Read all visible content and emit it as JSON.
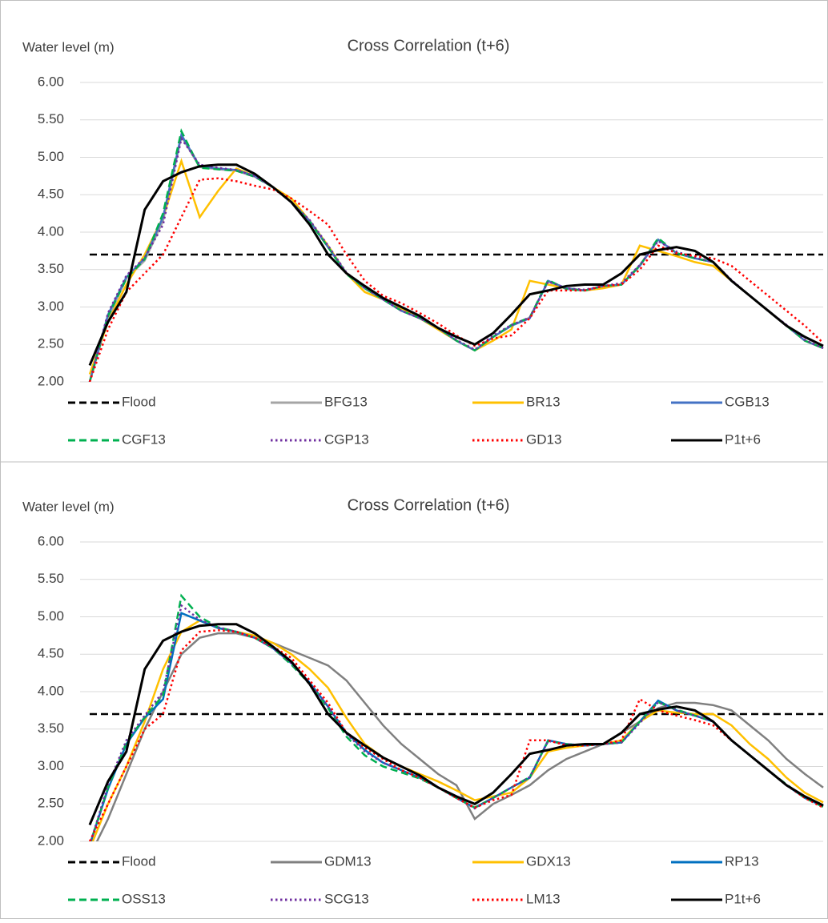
{
  "chart_data": [
    {
      "type": "line",
      "title": "Cross Correlation (t+6)",
      "y_label": "Water level (m)",
      "ylim": [
        2,
        6
      ],
      "grid": true,
      "legend": "bottom",
      "yticks": [
        {
          "value": 2,
          "label": "2.00"
        },
        {
          "value": 2.5,
          "label": "2.50"
        },
        {
          "value": 3,
          "label": "3.00"
        },
        {
          "value": 3.5,
          "label": "3.50"
        },
        {
          "value": 4,
          "label": "4.00"
        },
        {
          "value": 4.5,
          "label": "4.50"
        },
        {
          "value": 5,
          "label": "5.00"
        },
        {
          "value": 5.5,
          "label": "5.50"
        },
        {
          "value": 6,
          "label": "6.00"
        }
      ],
      "series": [
        {
          "name": "Flood",
          "color": "#000000",
          "dash": "dashed",
          "values": [
            3.7,
            3.7,
            3.7,
            3.7,
            3.7,
            3.7,
            3.7,
            3.7,
            3.7,
            3.7,
            3.7,
            3.7,
            3.7,
            3.7,
            3.7,
            3.7,
            3.7,
            3.7,
            3.7,
            3.7,
            3.7,
            3.7,
            3.7,
            3.7,
            3.7,
            3.7,
            3.7,
            3.7,
            3.7,
            3.7,
            3.7,
            3.7,
            3.7,
            3.7,
            3.7,
            3.7,
            3.7,
            3.7,
            3.7,
            3.7,
            3.7
          ]
        },
        {
          "name": "BFG13",
          "color": "#a5a5a5",
          "dash": "solid",
          "values": [
            2.0,
            2.85,
            3.38,
            3.62,
            4.15,
            5.28,
            4.87,
            4.84,
            4.82,
            4.74,
            4.6,
            4.4,
            4.15,
            3.8,
            3.45,
            3.25,
            3.1,
            2.95,
            2.85,
            2.72,
            2.55,
            2.42,
            2.6,
            2.75,
            2.86,
            3.34,
            3.24,
            3.22,
            3.28,
            3.3,
            3.56,
            3.9,
            3.72,
            3.65,
            3.6,
            3.35,
            3.15,
            2.95,
            2.75,
            2.55,
            2.45
          ]
        },
        {
          "name": "BR13",
          "color": "#ffc000",
          "dash": "solid",
          "values": [
            2.1,
            2.8,
            3.3,
            3.7,
            4.2,
            4.95,
            4.2,
            4.55,
            4.85,
            4.75,
            4.6,
            4.45,
            4.15,
            3.82,
            3.45,
            3.2,
            3.1,
            2.98,
            2.85,
            2.7,
            2.55,
            2.42,
            2.55,
            2.7,
            3.35,
            3.3,
            3.25,
            3.22,
            3.25,
            3.3,
            3.82,
            3.75,
            3.68,
            3.6,
            3.55,
            3.35,
            3.15,
            2.95,
            2.75,
            2.55,
            2.45
          ]
        },
        {
          "name": "CGB13",
          "color": "#4472c4",
          "dash": "solid",
          "values": [
            2.0,
            2.9,
            3.4,
            3.65,
            4.2,
            5.3,
            4.88,
            4.85,
            4.83,
            4.75,
            4.6,
            4.4,
            4.15,
            3.8,
            3.45,
            3.25,
            3.1,
            2.95,
            2.85,
            2.72,
            2.55,
            2.42,
            2.6,
            2.75,
            2.85,
            3.35,
            3.25,
            3.22,
            3.28,
            3.3,
            3.55,
            3.9,
            3.72,
            3.65,
            3.6,
            3.35,
            3.15,
            2.95,
            2.75,
            2.55,
            2.45
          ]
        },
        {
          "name": "CGF13",
          "color": "#00b050",
          "dash": "dashed",
          "values": [
            2.0,
            2.88,
            3.38,
            3.64,
            4.25,
            5.35,
            4.86,
            4.84,
            4.82,
            4.74,
            4.6,
            4.4,
            4.14,
            3.8,
            3.44,
            3.25,
            3.1,
            2.95,
            2.85,
            2.72,
            2.55,
            2.42,
            2.6,
            2.76,
            2.86,
            3.36,
            3.24,
            3.22,
            3.28,
            3.3,
            3.55,
            3.92,
            3.72,
            3.65,
            3.6,
            3.35,
            3.15,
            2.95,
            2.75,
            2.55,
            2.45
          ]
        },
        {
          "name": "CGP13",
          "color": "#7030a0",
          "dash": "dotted",
          "values": [
            2.0,
            2.92,
            3.42,
            3.66,
            4.1,
            5.25,
            4.9,
            4.86,
            4.83,
            4.75,
            4.6,
            4.4,
            4.16,
            3.82,
            3.46,
            3.26,
            3.1,
            2.95,
            2.85,
            2.72,
            2.56,
            2.43,
            2.62,
            2.76,
            2.86,
            3.34,
            3.25,
            3.23,
            3.28,
            3.32,
            3.56,
            3.88,
            3.74,
            3.66,
            3.6,
            3.36,
            3.15,
            2.95,
            2.76,
            2.56,
            2.45
          ]
        },
        {
          "name": "GD13",
          "color": "#ff0000",
          "dash": "dotted",
          "values": [
            2.0,
            2.7,
            3.2,
            3.45,
            3.7,
            4.2,
            4.7,
            4.72,
            4.68,
            4.62,
            4.57,
            4.45,
            4.28,
            4.1,
            3.7,
            3.35,
            3.15,
            3.05,
            2.92,
            2.78,
            2.62,
            2.48,
            2.58,
            2.62,
            2.85,
            3.22,
            3.22,
            3.22,
            3.28,
            3.3,
            3.5,
            3.82,
            3.72,
            3.68,
            3.65,
            3.55,
            3.35,
            3.15,
            2.95,
            2.75,
            2.52
          ]
        },
        {
          "name": "P1t+6",
          "color": "#000000",
          "dash": "solid",
          "values": [
            2.22,
            2.8,
            3.2,
            4.3,
            4.68,
            4.8,
            4.88,
            4.9,
            4.9,
            4.78,
            4.6,
            4.4,
            4.1,
            3.7,
            3.45,
            3.28,
            3.12,
            3.0,
            2.88,
            2.72,
            2.6,
            2.5,
            2.65,
            2.9,
            3.17,
            3.22,
            3.28,
            3.3,
            3.3,
            3.45,
            3.7,
            3.76,
            3.8,
            3.75,
            3.6,
            3.35,
            3.15,
            2.95,
            2.75,
            2.6,
            2.48
          ]
        }
      ]
    },
    {
      "type": "line",
      "title": "Cross Correlation (t+6)",
      "y_label": "Water level (m)",
      "ylim": [
        2,
        6
      ],
      "grid": true,
      "legend": "bottom",
      "yticks": [
        {
          "value": 2,
          "label": "2.00"
        },
        {
          "value": 2.5,
          "label": "2.50"
        },
        {
          "value": 3,
          "label": "3.00"
        },
        {
          "value": 3.5,
          "label": "3.50"
        },
        {
          "value": 4,
          "label": "4.00"
        },
        {
          "value": 4.5,
          "label": "4.50"
        },
        {
          "value": 5,
          "label": "5.00"
        },
        {
          "value": 5.5,
          "label": "5.50"
        },
        {
          "value": 6,
          "label": "6.00"
        }
      ],
      "series": [
        {
          "name": "Flood",
          "color": "#000000",
          "dash": "dashed",
          "values": [
            3.7,
            3.7,
            3.7,
            3.7,
            3.7,
            3.7,
            3.7,
            3.7,
            3.7,
            3.7,
            3.7,
            3.7,
            3.7,
            3.7,
            3.7,
            3.7,
            3.7,
            3.7,
            3.7,
            3.7,
            3.7,
            3.7,
            3.7,
            3.7,
            3.7,
            3.7,
            3.7,
            3.7,
            3.7,
            3.7,
            3.7,
            3.7,
            3.7,
            3.7,
            3.7,
            3.7,
            3.7,
            3.7,
            3.7,
            3.7,
            3.7
          ]
        },
        {
          "name": "GDM13",
          "color": "#808080",
          "dash": "solid",
          "values": [
            1.8,
            2.3,
            2.9,
            3.5,
            4.0,
            4.5,
            4.72,
            4.78,
            4.78,
            4.72,
            4.65,
            4.55,
            4.45,
            4.35,
            4.15,
            3.85,
            3.55,
            3.3,
            3.1,
            2.9,
            2.75,
            2.3,
            2.5,
            2.62,
            2.75,
            2.95,
            3.1,
            3.2,
            3.3,
            3.45,
            3.6,
            3.78,
            3.85,
            3.85,
            3.82,
            3.75,
            3.55,
            3.35,
            3.1,
            2.9,
            2.72
          ]
        },
        {
          "name": "GDX13",
          "color": "#ffc000",
          "dash": "solid",
          "values": [
            1.9,
            2.5,
            3.0,
            3.6,
            4.3,
            4.8,
            4.95,
            4.85,
            4.8,
            4.75,
            4.65,
            4.5,
            4.3,
            4.05,
            3.65,
            3.3,
            3.12,
            3.0,
            2.9,
            2.8,
            2.68,
            2.55,
            2.6,
            2.65,
            2.85,
            3.2,
            3.25,
            3.28,
            3.3,
            3.35,
            3.6,
            3.75,
            3.72,
            3.7,
            3.7,
            3.55,
            3.3,
            3.1,
            2.85,
            2.65,
            2.52
          ]
        },
        {
          "name": "RP13",
          "color": "#0070c0",
          "dash": "solid",
          "values": [
            1.95,
            2.7,
            3.3,
            3.65,
            3.9,
            5.05,
            4.95,
            4.85,
            4.8,
            4.72,
            4.58,
            4.38,
            4.12,
            3.8,
            3.45,
            3.22,
            3.05,
            2.95,
            2.85,
            2.72,
            2.58,
            2.45,
            2.58,
            2.72,
            2.85,
            3.35,
            3.3,
            3.28,
            3.3,
            3.32,
            3.6,
            3.88,
            3.75,
            3.68,
            3.6,
            3.35,
            3.15,
            2.95,
            2.75,
            2.58,
            2.47
          ]
        },
        {
          "name": "OSS13",
          "color": "#00b050",
          "dash": "dashed",
          "values": [
            1.95,
            2.72,
            3.32,
            3.66,
            3.95,
            5.28,
            5.0,
            4.86,
            4.8,
            4.72,
            4.58,
            4.36,
            4.1,
            3.78,
            3.4,
            3.15,
            3.0,
            2.92,
            2.84,
            2.72,
            2.58,
            2.45,
            2.58,
            2.72,
            2.86,
            3.34,
            3.3,
            3.28,
            3.3,
            3.32,
            3.6,
            3.86,
            3.76,
            3.68,
            3.6,
            3.35,
            3.15,
            2.95,
            2.76,
            2.58,
            2.46
          ]
        },
        {
          "name": "SCG13",
          "color": "#7030a0",
          "dash": "dotted",
          "values": [
            1.95,
            2.75,
            3.35,
            3.68,
            4.0,
            5.15,
            4.96,
            4.86,
            4.8,
            4.72,
            4.58,
            4.38,
            4.12,
            3.8,
            3.44,
            3.2,
            3.05,
            2.95,
            2.85,
            2.72,
            2.58,
            2.44,
            2.58,
            2.72,
            2.86,
            3.34,
            3.3,
            3.28,
            3.3,
            3.32,
            3.58,
            3.86,
            3.75,
            3.68,
            3.6,
            3.35,
            3.15,
            2.95,
            2.75,
            2.58,
            2.46
          ]
        },
        {
          "name": "LM13",
          "color": "#ff0000",
          "dash": "dotted",
          "values": [
            2.0,
            2.5,
            3.0,
            3.5,
            3.7,
            4.55,
            4.8,
            4.82,
            4.8,
            4.72,
            4.6,
            4.45,
            4.15,
            3.85,
            3.45,
            3.25,
            3.1,
            2.95,
            2.85,
            2.72,
            2.58,
            2.45,
            2.55,
            2.62,
            3.35,
            3.35,
            3.28,
            3.28,
            3.3,
            3.35,
            3.9,
            3.75,
            3.68,
            3.62,
            3.55,
            3.35,
            3.15,
            2.95,
            2.75,
            2.58,
            2.45
          ]
        },
        {
          "name": "P1t+6",
          "color": "#000000",
          "dash": "solid",
          "values": [
            2.22,
            2.8,
            3.2,
            4.3,
            4.68,
            4.8,
            4.88,
            4.9,
            4.9,
            4.78,
            4.6,
            4.4,
            4.1,
            3.7,
            3.45,
            3.28,
            3.12,
            3.0,
            2.88,
            2.72,
            2.6,
            2.5,
            2.65,
            2.9,
            3.17,
            3.22,
            3.28,
            3.3,
            3.3,
            3.45,
            3.7,
            3.76,
            3.8,
            3.75,
            3.6,
            3.35,
            3.15,
            2.95,
            2.75,
            2.6,
            2.48
          ]
        }
      ]
    }
  ]
}
